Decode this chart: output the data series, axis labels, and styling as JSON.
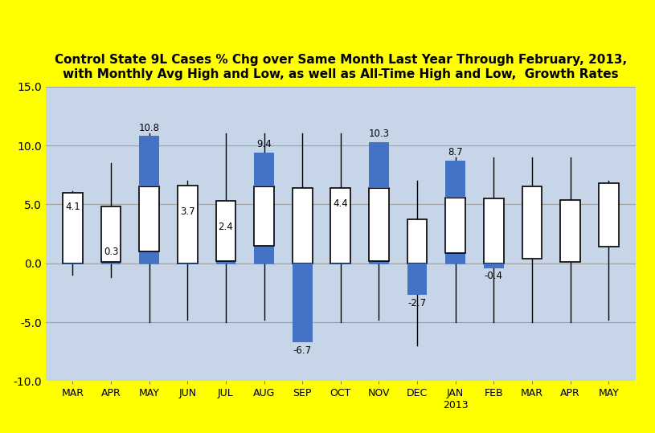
{
  "title_line1": "Control State 9L Cases % Chg over Same Month Last Year Through February, 2013,",
  "title_line2": "with Monthly Avg High and Low, as well as All-Time High and Low,  Growth Rates",
  "months": [
    "MAR",
    "APR",
    "MAY",
    "JUN",
    "JUL",
    "AUG",
    "SEP",
    "OCT",
    "NOV",
    "DEC",
    "JAN\n2013",
    "FEB",
    "MAR",
    "APR",
    "MAY"
  ],
  "values": [
    4.1,
    0.3,
    10.8,
    3.7,
    2.4,
    9.4,
    -6.7,
    4.4,
    10.3,
    -2.7,
    8.7,
    -0.4,
    null,
    null,
    null
  ],
  "value_labels": [
    "4.1",
    "0.3",
    "10.8",
    "3.7",
    "2.4",
    "9.4",
    "-6.7",
    "4.4",
    "10.3",
    "-2.7",
    "8.7",
    "-0.4",
    null,
    null,
    null
  ],
  "box_low": [
    0.0,
    0.1,
    1.0,
    0.0,
    0.2,
    1.5,
    0.0,
    0.0,
    0.2,
    0.0,
    0.9,
    0.0,
    0.4,
    0.1,
    1.4
  ],
  "box_high": [
    6.0,
    4.8,
    6.5,
    6.6,
    5.3,
    6.5,
    6.4,
    6.4,
    6.4,
    3.7,
    5.6,
    5.5,
    6.5,
    5.4,
    6.8
  ],
  "whisker_low": [
    -1.0,
    -1.2,
    -5.0,
    -4.8,
    -5.0,
    -4.8,
    -5.0,
    -5.0,
    -4.8,
    -7.0,
    -5.0,
    -5.0,
    -5.0,
    -5.0,
    -4.8
  ],
  "whisker_high": [
    6.1,
    8.5,
    11.0,
    7.0,
    11.0,
    11.0,
    11.0,
    11.0,
    7.0,
    7.0,
    9.0,
    9.0,
    9.0,
    9.0,
    7.0
  ],
  "blue_color": "#4472C4",
  "box_edge_color": "#000000",
  "bg_color": "#C6D5E8",
  "outer_bg": "#FFFF00",
  "ylim": [
    -10.0,
    15.0
  ],
  "yticks": [
    -10.0,
    -5.0,
    0.0,
    5.0,
    10.0,
    15.0
  ],
  "bar_width": 0.52,
  "box_width": 0.52,
  "whisker_lw": 1.0,
  "grid_color": "#A0A0A0"
}
